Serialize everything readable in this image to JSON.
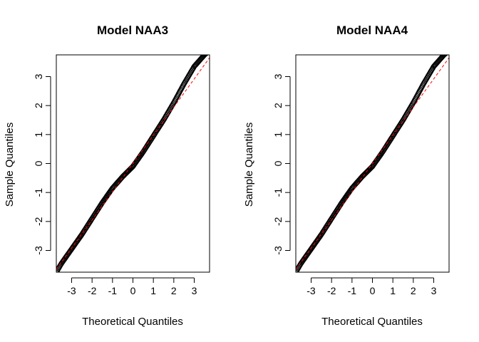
{
  "chart_data": [
    {
      "type": "scatter",
      "title": "Model NAA3",
      "xlabel": "Theoretical Quantiles",
      "ylabel": "Sample Quantiles",
      "xlim": [
        -3.75,
        3.75
      ],
      "ylim": [
        -3.75,
        3.75
      ],
      "xticks": [
        -3,
        -2,
        -1,
        0,
        1,
        2,
        3
      ],
      "yticks": [
        -3,
        -2,
        -1,
        0,
        1,
        2,
        3
      ],
      "grid": false,
      "point_color": "#000000",
      "reference_line": {
        "style": "dashed",
        "color": "#ff0000",
        "x": [
          -3.75,
          3.75
        ],
        "y": [
          -3.65,
          3.65
        ]
      },
      "points": {
        "x": [
          -3.75,
          -3.5,
          -3.0,
          -2.5,
          -2.0,
          -1.5,
          -1.0,
          -0.5,
          0.0,
          0.5,
          1.0,
          1.5,
          2.0,
          2.5,
          3.0,
          3.5,
          3.75
        ],
        "y": [
          -3.75,
          -3.45,
          -2.95,
          -2.45,
          -1.9,
          -1.35,
          -0.85,
          -0.45,
          -0.1,
          0.4,
          0.95,
          1.5,
          2.1,
          2.75,
          3.35,
          3.75,
          3.9
        ]
      }
    },
    {
      "type": "scatter",
      "title": "Model NAA4",
      "xlabel": "Theoretical Quantiles",
      "ylabel": "Sample Quantiles",
      "xlim": [
        -3.75,
        3.75
      ],
      "ylim": [
        -3.75,
        3.75
      ],
      "xticks": [
        -3,
        -2,
        -1,
        0,
        1,
        2,
        3
      ],
      "yticks": [
        -3,
        -2,
        -1,
        0,
        1,
        2,
        3
      ],
      "grid": false,
      "point_color": "#000000",
      "reference_line": {
        "style": "dashed",
        "color": "#ff0000",
        "x": [
          -3.75,
          3.75
        ],
        "y": [
          -3.65,
          3.65
        ]
      },
      "points": {
        "x": [
          -3.75,
          -3.5,
          -3.0,
          -2.5,
          -2.0,
          -1.5,
          -1.0,
          -0.5,
          0.0,
          0.5,
          1.0,
          1.5,
          2.0,
          2.5,
          3.0,
          3.5,
          3.75
        ],
        "y": [
          -3.75,
          -3.45,
          -2.95,
          -2.45,
          -1.9,
          -1.35,
          -0.85,
          -0.45,
          -0.1,
          0.4,
          0.95,
          1.5,
          2.1,
          2.75,
          3.35,
          3.75,
          3.9
        ]
      }
    }
  ]
}
